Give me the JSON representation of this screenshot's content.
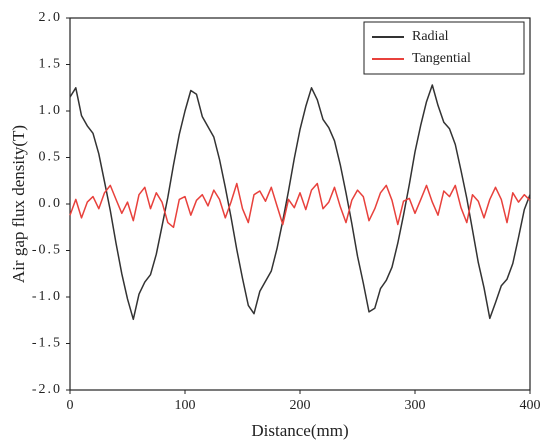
{
  "chart_data": {
    "type": "line",
    "x_label": "Distance(mm)",
    "y_label": "Air gap flux density(T)",
    "x": [
      0,
      5,
      10,
      15,
      20,
      25,
      30,
      35,
      40,
      45,
      50,
      55,
      60,
      65,
      70,
      75,
      80,
      85,
      90,
      95,
      100,
      105,
      110,
      115,
      120,
      125,
      130,
      135,
      140,
      145,
      150,
      155,
      160,
      165,
      170,
      175,
      180,
      185,
      190,
      195,
      200,
      205,
      210,
      215,
      220,
      225,
      230,
      235,
      240,
      245,
      250,
      255,
      260,
      265,
      270,
      275,
      280,
      285,
      290,
      295,
      300,
      305,
      310,
      315,
      320,
      325,
      330,
      335,
      340,
      345,
      350,
      355,
      360,
      365,
      370,
      375,
      380,
      385,
      390,
      395,
      400
    ],
    "series": [
      {
        "name": "Radial",
        "color": "#333333",
        "values": [
          1.15,
          1.25,
          0.95,
          0.84,
          0.76,
          0.54,
          0.24,
          -0.07,
          -0.42,
          -0.75,
          -1.02,
          -1.24,
          -0.97,
          -0.84,
          -0.76,
          -0.54,
          -0.24,
          0.07,
          0.42,
          0.75,
          1.0,
          1.22,
          1.18,
          0.94,
          0.83,
          0.72,
          0.48,
          0.18,
          -0.14,
          -0.49,
          -0.8,
          -1.09,
          -1.18,
          -0.94,
          -0.83,
          -0.72,
          -0.48,
          -0.18,
          0.14,
          0.49,
          0.8,
          1.05,
          1.25,
          1.12,
          0.91,
          0.82,
          0.68,
          0.42,
          0.12,
          -0.21,
          -0.56,
          -0.85,
          -1.16,
          -1.12,
          -0.91,
          -0.82,
          -0.68,
          -0.42,
          -0.12,
          0.21,
          0.56,
          0.85,
          1.1,
          1.28,
          1.06,
          0.88,
          0.81,
          0.64,
          0.36,
          0.06,
          -0.28,
          -0.63,
          -0.9,
          -1.23,
          -1.06,
          -0.88,
          -0.81,
          -0.64,
          -0.36,
          -0.06,
          0.1
        ]
      },
      {
        "name": "Tangential",
        "color": "#e8413c",
        "values": [
          -0.12,
          0.05,
          -0.15,
          0.02,
          0.08,
          -0.05,
          0.12,
          0.2,
          0.05,
          -0.1,
          0.02,
          -0.18,
          0.1,
          0.18,
          -0.05,
          0.12,
          0.02,
          -0.2,
          -0.25,
          0.05,
          0.08,
          -0.12,
          0.04,
          0.1,
          -0.02,
          0.15,
          0.05,
          -0.15,
          0.02,
          0.22,
          -0.05,
          -0.2,
          0.1,
          0.14,
          0.03,
          0.18,
          -0.02,
          -0.22,
          0.05,
          -0.04,
          0.12,
          -0.06,
          0.15,
          0.22,
          -0.05,
          0.02,
          0.18,
          -0.03,
          -0.2,
          0.04,
          0.15,
          0.08,
          -0.18,
          -0.05,
          0.12,
          0.2,
          0.04,
          -0.22,
          0.03,
          0.06,
          -0.1,
          0.05,
          0.2,
          0.02,
          -0.12,
          0.14,
          0.08,
          0.2,
          -0.04,
          -0.2,
          0.1,
          0.03,
          -0.15,
          0.05,
          0.18,
          0.05,
          -0.2,
          0.12,
          0.02,
          0.1,
          0.04
        ]
      }
    ],
    "xlim": [
      0,
      400
    ],
    "xticks": [
      0,
      100,
      200,
      300,
      400
    ],
    "ylim": [
      -2,
      2
    ],
    "yticks": [
      {
        "value": 2,
        "label": "2.0"
      },
      {
        "value": 1.5,
        "label": "1.5"
      },
      {
        "value": 1,
        "label": "1.0"
      },
      {
        "value": 0.5,
        "label": "0.5"
      },
      {
        "value": 0,
        "label": "0.0"
      },
      {
        "value": -0.5,
        "label": "-0.5"
      },
      {
        "value": -1,
        "label": "-1.0"
      },
      {
        "value": -1.5,
        "label": "-1.5"
      },
      {
        "value": -2,
        "label": "-2.0"
      }
    ],
    "legend": "upper right",
    "grid": false
  }
}
